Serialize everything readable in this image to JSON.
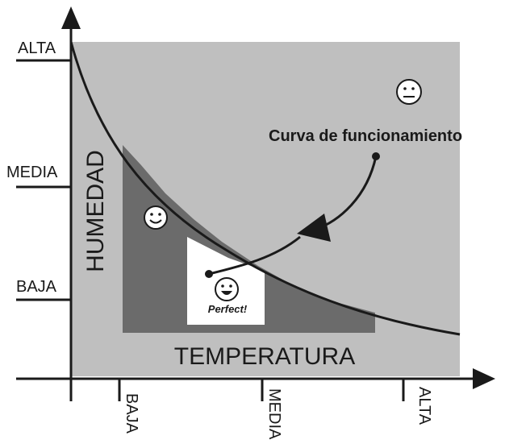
{
  "y_axis": {
    "title": "HUMEDAD",
    "ticks": [
      "ALTA",
      "MEDIA",
      "BAJA"
    ]
  },
  "x_axis": {
    "title": "TEMPERATURA",
    "ticks": [
      "BAJA",
      "MEDIA",
      "ALTA"
    ]
  },
  "callout": "Curva de funcionamiento",
  "perfect_label": "Perfect!",
  "faces": [
    "neutral-face-icon",
    "smile-face-icon",
    "laugh-face-icon"
  ],
  "colors": {
    "outer_zone": "#bfbfbf",
    "comfort_zone": "#6b6b6b",
    "perfect_zone": "#ffffff",
    "ink": "#1a1a1a"
  }
}
